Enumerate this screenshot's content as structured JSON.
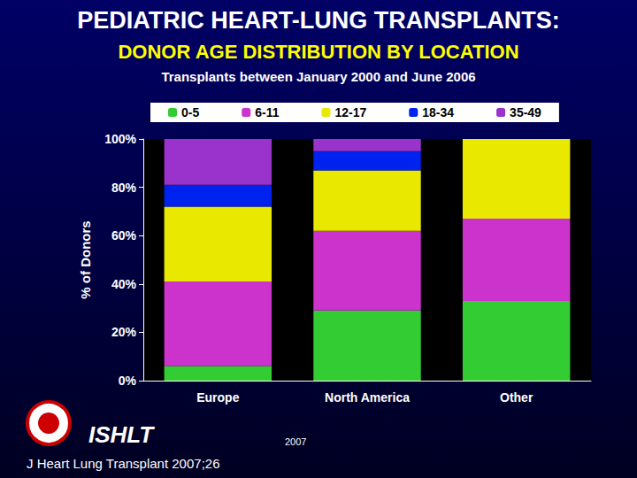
{
  "chart_data": {
    "type": "bar",
    "title": "PEDIATRIC HEART-LUNG TRANSPLANTS:",
    "subtitle": [
      "DONOR AGE DISTRIBUTION BY LOCATION",
      "Transplants between January 2000 and June 2006"
    ],
    "y_label": "% of Donors",
    "categories": [
      "Europe",
      "North America",
      "Other"
    ],
    "series": [
      {
        "name": "0-5",
        "color": "#33cc33",
        "values": [
          6,
          29,
          33
        ]
      },
      {
        "name": "6-11",
        "color": "#cc33cc",
        "values": [
          35,
          33,
          34
        ]
      },
      {
        "name": "12-17",
        "color": "#e8e800",
        "values": [
          31,
          25,
          33
        ]
      },
      {
        "name": "18-34",
        "color": "#0022ee",
        "values": [
          9,
          8,
          0
        ]
      },
      {
        "name": "35-49",
        "color": "#9933cc",
        "values": [
          19,
          5,
          0
        ]
      }
    ],
    "stacked": true,
    "ylim": [
      0,
      100
    ],
    "yticks": [
      {
        "value": 0,
        "label": "0%"
      },
      {
        "value": 20,
        "label": "20%"
      },
      {
        "value": 40,
        "label": "40%"
      },
      {
        "value": 60,
        "label": "60%"
      },
      {
        "value": 80,
        "label": "80%"
      },
      {
        "value": 100,
        "label": "100%"
      }
    ],
    "grid": false,
    "legend": "top",
    "annotations": [
      "ISHLT",
      "2007",
      "J Heart Lung Transplant 2007;26"
    ]
  }
}
